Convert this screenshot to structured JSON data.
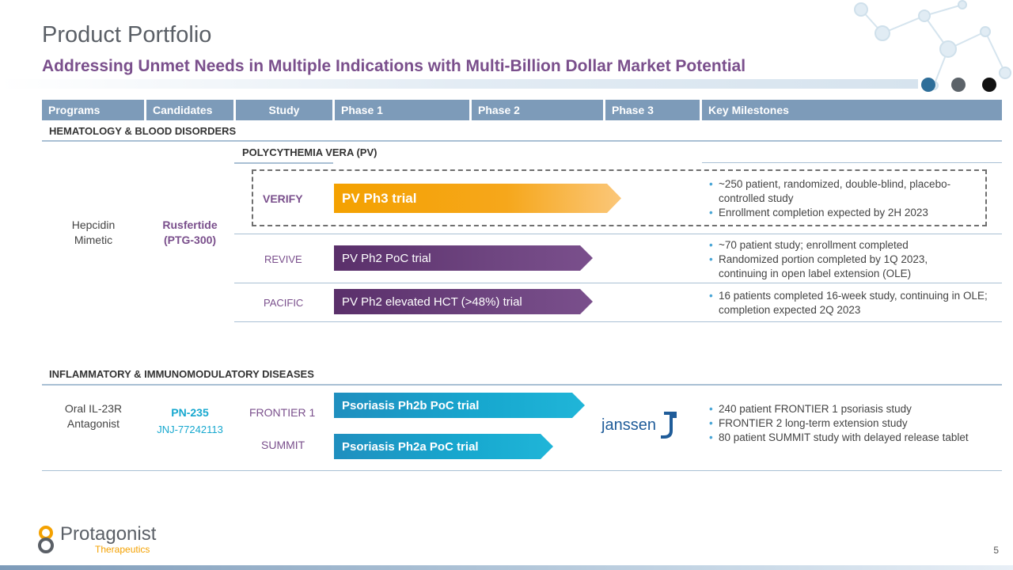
{
  "header": {
    "title": "Product Portfolio",
    "subtitle": "Addressing Unmet Needs in Multiple Indications with Multi-Billion Dollar Market Potential"
  },
  "colors": {
    "accent_purple": "#7a4f8c",
    "header_blue": "#7d9bb9",
    "orange": "#f4a100",
    "cyan": "#17a8cf",
    "dot1": "#2e6e99",
    "dot2": "#5c6369",
    "dot3": "#111111"
  },
  "table": {
    "columns": [
      "Programs",
      "Candidates",
      "Study",
      "Phase 1",
      "Phase 2",
      "Phase 3",
      "Key Milestones"
    ]
  },
  "sections": {
    "hematology": {
      "label": "HEMATOLOGY & BLOOD DISORDERS",
      "subsection": "POLYCYTHEMIA VERA (PV)",
      "program": [
        "Hepcidin",
        "Mimetic"
      ],
      "candidate": [
        "Rusfertide",
        "(PTG-300)"
      ],
      "studies": [
        {
          "name": "VERIFY",
          "trial": "PV Ph3 trial",
          "phase_reached": 3,
          "milestones": [
            "~250 patient, randomized, double-blind, placebo-controlled study",
            "Enrollment completion expected by 2H 2023"
          ]
        },
        {
          "name": "REVIVE",
          "trial": "PV Ph2 PoC trial",
          "phase_reached": 2,
          "milestones": [
            "~70 patient study; enrollment completed",
            "Randomized portion completed by 1Q 2023, continuing in open label extension (OLE)"
          ]
        },
        {
          "name": "PACIFIC",
          "trial": "PV Ph2 elevated HCT (>48%) trial",
          "phase_reached": 2,
          "milestones": [
            "16 patients completed 16-week study, continuing in OLE; completion expected 2Q 2023"
          ]
        }
      ]
    },
    "inflammatory": {
      "label": "INFLAMMATORY & IMMUNOMODULATORY DISEASES",
      "program": [
        "Oral IL-23R",
        "Antagonist"
      ],
      "candidate": "PN-235",
      "candidate_alt": "JNJ-77242113",
      "partner": "janssen",
      "studies": [
        {
          "name": "FRONTIER 1",
          "trial": "Psoriasis Ph2b PoC trial",
          "phase_reached": 2
        },
        {
          "name": "SUMMIT",
          "trial": "Psoriasis Ph2a PoC trial",
          "phase_reached": 2
        }
      ],
      "milestones": [
        "240 patient FRONTIER 1 psoriasis study",
        "FRONTIER 2 long-term extension study",
        "80 patient SUMMIT study with delayed release tablet"
      ]
    }
  },
  "footer": {
    "logo_name": "Protagonist",
    "logo_sub": "Therapeutics",
    "page_number": "5"
  }
}
